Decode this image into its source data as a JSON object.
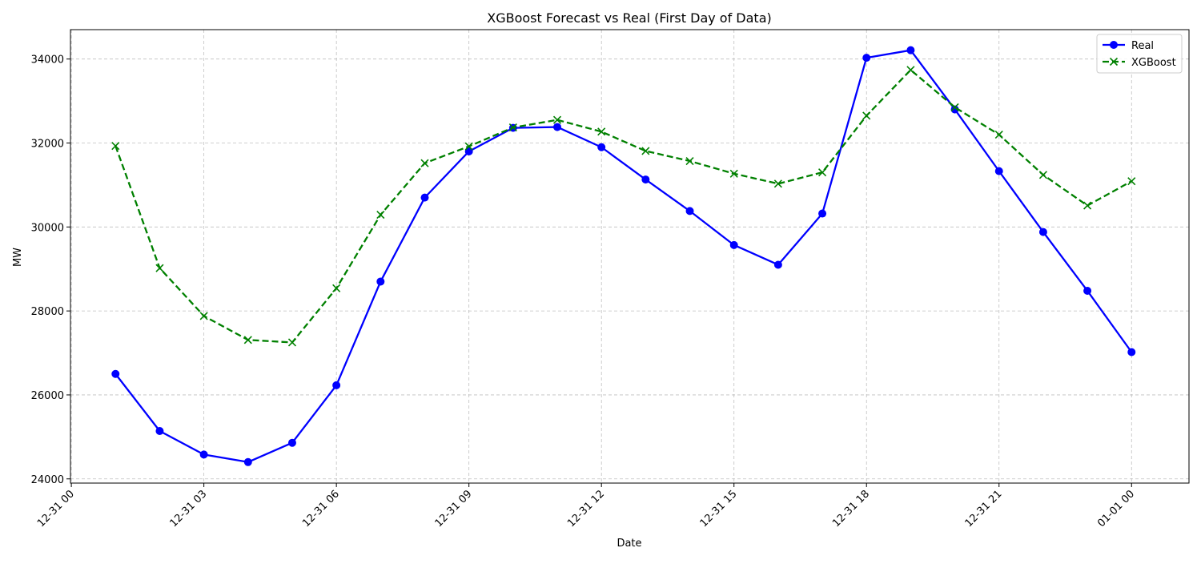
{
  "chart_data": {
    "type": "line",
    "title": "XGBoost Forecast vs Real (First Day of Data)",
    "xlabel": "Date",
    "ylabel": "MW",
    "x": [
      "12-31 01",
      "12-31 02",
      "12-31 03",
      "12-31 04",
      "12-31 05",
      "12-31 06",
      "12-31 07",
      "12-31 08",
      "12-31 09",
      "12-31 10",
      "12-31 11",
      "12-31 12",
      "12-31 13",
      "12-31 14",
      "12-31 15",
      "12-31 16",
      "12-31 17",
      "12-31 18",
      "12-31 19",
      "12-31 20",
      "12-31 21",
      "12-31 22",
      "12-31 23",
      "01-01 00"
    ],
    "x_hours": [
      1,
      2,
      3,
      4,
      5,
      6,
      7,
      8,
      9,
      10,
      11,
      12,
      13,
      14,
      15,
      16,
      17,
      18,
      19,
      20,
      21,
      22,
      23,
      24
    ],
    "xlim_hours": [
      -0.02,
      25.3
    ],
    "ylim": [
      23900,
      34700
    ],
    "x_ticks": [
      {
        "hour": 0,
        "label": "12-31 00"
      },
      {
        "hour": 3,
        "label": "12-31 03"
      },
      {
        "hour": 6,
        "label": "12-31 06"
      },
      {
        "hour": 9,
        "label": "12-31 09"
      },
      {
        "hour": 12,
        "label": "12-31 12"
      },
      {
        "hour": 15,
        "label": "12-31 15"
      },
      {
        "hour": 18,
        "label": "12-31 18"
      },
      {
        "hour": 21,
        "label": "12-31 21"
      },
      {
        "hour": 24,
        "label": "01-01 00"
      }
    ],
    "y_ticks": [
      24000,
      26000,
      28000,
      30000,
      32000,
      34000
    ],
    "grid": true,
    "legend_position": "top-right",
    "series": [
      {
        "name": "Real",
        "color": "#0000ff",
        "linestyle": "solid",
        "marker": "circle",
        "values": [
          26500,
          25140,
          24580,
          24400,
          24860,
          26230,
          28700,
          30700,
          31800,
          32360,
          32380,
          31900,
          31130,
          30380,
          29570,
          29100,
          30320,
          34030,
          34210,
          32800,
          31330,
          29880,
          28480,
          27020
        ]
      },
      {
        "name": "XGBoost",
        "color": "#008000",
        "linestyle": "dashed",
        "marker": "x",
        "values": [
          31930,
          29020,
          27880,
          27310,
          27250,
          28540,
          30290,
          31520,
          31920,
          32370,
          32550,
          32270,
          31810,
          31570,
          31270,
          31030,
          31300,
          32650,
          33740,
          32850,
          32200,
          31240,
          30510,
          31090
        ]
      }
    ]
  }
}
